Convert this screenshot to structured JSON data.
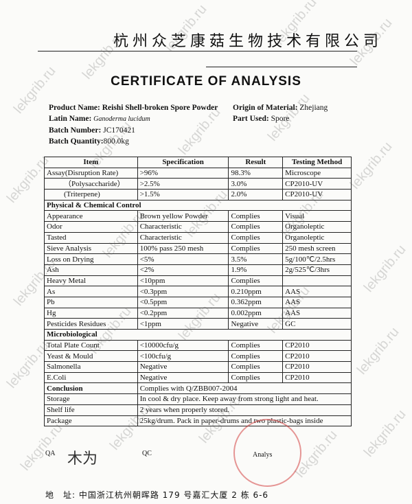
{
  "company_name": "杭州众芝康菇生物技术有限公司",
  "title": "CERTIFICATE  OF  ANALYSIS",
  "product": {
    "name_label": "Product Name:",
    "name": "Reishi Shell-broken Spore Powder",
    "latin_label": "Latin Name:",
    "latin": "Ganoderma lucidum",
    "batch_label": "Batch Number:",
    "batch": "JC170421",
    "qty_label": "Batch Quantity:",
    "qty": "800.0kg",
    "origin_label": "Origin of Material:",
    "origin": "Zhejiang",
    "part_label": "Part Used:",
    "part": "Spore"
  },
  "table": {
    "headers": [
      "Item",
      "Specification",
      "Result",
      "Testing Method"
    ],
    "rows": [
      {
        "cells": [
          "Assay(Disruption Rate)",
          ">96%",
          "98.3%",
          "Microscope"
        ]
      },
      {
        "cells": [
          "（Polysaccharide）",
          ">2.5%",
          "3.0%",
          "CP2010-UV"
        ],
        "indent": true
      },
      {
        "cells": [
          "(Triterpene)",
          ">1.5%",
          "2.0%",
          "CP2010-UV"
        ],
        "indent": true
      },
      {
        "section": "Physical & Chemical Control"
      },
      {
        "cells": [
          "Appearance",
          "Brown yellow Powder",
          "Complies",
          "Visual"
        ]
      },
      {
        "cells": [
          "Odor",
          "Characteristic",
          "Complies",
          "Organoleptic"
        ]
      },
      {
        "cells": [
          "Tasted",
          "Characteristic",
          "Complies",
          "Organoleptic"
        ]
      },
      {
        "cells": [
          "Sieve Analysis",
          "100% pass 250 mesh",
          "Complies",
          "250 mesh screen"
        ]
      },
      {
        "cells": [
          "Loss on Drying",
          "<5%",
          "3.5%",
          "5g/100℃/2.5hrs"
        ]
      },
      {
        "cells": [
          "Ash",
          "<2%",
          "1.9%",
          "2g/525℃/3hrs"
        ]
      },
      {
        "cells": [
          "Heavy Metal",
          "<10ppm",
          "Complies",
          ""
        ]
      },
      {
        "cells": [
          "As",
          "<0.3ppm",
          "0.210ppm",
          "AAS"
        ]
      },
      {
        "cells": [
          "Pb",
          "<0.5ppm",
          "0.362ppm",
          "AAS"
        ]
      },
      {
        "cells": [
          "Hg",
          "<0.2ppm",
          "0.002ppm",
          "AAS"
        ]
      },
      {
        "cells": [
          "Pesticides Residues",
          "<1ppm",
          "Negative",
          "GC"
        ]
      },
      {
        "section": "Microbiological"
      },
      {
        "cells": [
          "Total Plate Count",
          "<10000cfu/g",
          "Complies",
          "CP2010"
        ]
      },
      {
        "cells": [
          "Yeast & Mould",
          "<100cfu/g",
          "Complies",
          "CP2010"
        ]
      },
      {
        "cells": [
          "Salmonella",
          "Negative",
          "Complies",
          "CP2010"
        ]
      },
      {
        "cells": [
          "E.Coli",
          "Negative",
          "Complies",
          "CP2010"
        ]
      },
      {
        "label": "Conclusion",
        "bold": true,
        "value": "Complies with Q/ZBB007-2004"
      },
      {
        "label": "Storage",
        "value": "In cool & dry place. Keep away from strong light and heat."
      },
      {
        "label": "Shelf life",
        "value": "2 years when properly stored."
      },
      {
        "label": "Package",
        "value": "25kg/drum. Pack in paper-drums and two plastic-bags inside"
      }
    ]
  },
  "signatures": {
    "qa": "QA",
    "qc": "QC",
    "analyst": "Analys"
  },
  "footer": "地　址: 中国浙江杭州朝晖路 179 号嘉汇大厦 2 栋 6-6",
  "watermark": "lekgrib.ru",
  "colors": {
    "stamp": "#d23c3c"
  }
}
